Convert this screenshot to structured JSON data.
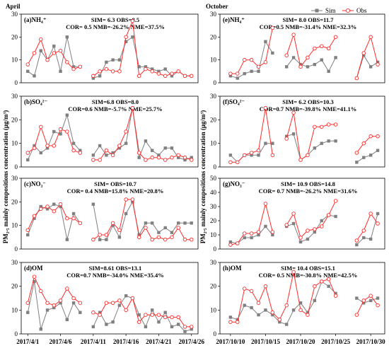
{
  "months": {
    "left": "April",
    "right": "October"
  },
  "legend": {
    "sim": "Sim",
    "obs": "Obs"
  },
  "ylabels": {
    "left": "PM",
    "right": "PM"
  },
  "ylabel_text": "PM₂.₅ mainly compositions concentration (μg/m³)",
  "xticks": {
    "left": [
      "2017/4/1",
      "2017/4/6",
      "2017/4/11",
      "2017/4/16",
      "2017/4/21",
      "2017/4/26"
    ],
    "right": [
      "2017/10/10",
      "2017/10/15",
      "2017/10/20",
      "2017/10/25",
      "2017/10/30"
    ]
  },
  "chart_data": [
    {
      "type": "line",
      "id": "a",
      "column": "left",
      "label": "(a)NH₄⁺",
      "stats1": "SIM= 6.3 OBS=8.5",
      "stats2": "COR= 0.5 NMB=-26.2% NME=37.5%",
      "ylim": [
        0,
        30
      ],
      "yticks": [
        0,
        10,
        20,
        30
      ],
      "x": [
        1,
        2,
        3,
        4,
        5,
        6,
        7,
        8,
        9,
        11,
        12,
        13,
        14,
        15,
        16,
        17,
        18,
        19,
        20,
        21,
        22,
        23,
        24,
        25,
        26
      ],
      "series": [
        {
          "name": "Sim",
          "values": [
            5,
            3,
            14,
            10,
            16,
            5,
            20,
            7,
            7,
            2,
            3,
            9,
            10,
            10,
            18,
            20,
            7,
            7,
            6,
            5,
            6,
            3,
            5,
            3,
            3
          ]
        },
        {
          "name": "Obs",
          "values": [
            8,
            13,
            19,
            10,
            13,
            14,
            9,
            6,
            7,
            3,
            5,
            6,
            5,
            5,
            20,
            27,
            3,
            6,
            5,
            4,
            3,
            4,
            5,
            3,
            3
          ]
        }
      ]
    },
    {
      "type": "line",
      "id": "b",
      "column": "left",
      "label": "(b)SO₄²⁻",
      "stats1": "SIM=6.8 OBS=8.0",
      "stats2": "COR=0.6 NMB=-5.7% NME=25.7%",
      "ylim": [
        0,
        30
      ],
      "yticks": [
        0,
        10,
        20,
        30
      ],
      "x": [
        1,
        2,
        3,
        4,
        5,
        6,
        7,
        8,
        9,
        11,
        12,
        13,
        14,
        15,
        16,
        17,
        18,
        19,
        20,
        21,
        22,
        23,
        24,
        25,
        26
      ],
      "series": [
        {
          "name": "Sim",
          "values": [
            3,
            9,
            6,
            8,
            15,
            14,
            22,
            10,
            7,
            5,
            9,
            5,
            6,
            8,
            10,
            25,
            4,
            11,
            7,
            5,
            8,
            8,
            4,
            3,
            4
          ]
        },
        {
          "name": "Obs",
          "values": [
            6,
            8,
            17,
            9,
            9,
            16,
            15,
            7,
            6,
            3,
            3,
            7,
            5,
            9,
            15,
            25,
            6,
            3,
            4,
            4,
            3,
            4,
            5,
            4,
            3
          ]
        }
      ]
    },
    {
      "type": "line",
      "id": "c",
      "column": "left",
      "label": "(c)NO₃⁻",
      "stats1": "SIM= OBS=10.7",
      "stats2": "COR= 0.4 NMB=15.8% NME=20.8%",
      "ylim": [
        0,
        30
      ],
      "yticks": [
        0,
        10,
        20,
        30
      ],
      "x": [
        1,
        2,
        3,
        4,
        5,
        6,
        7,
        8,
        9,
        11,
        12,
        13,
        14,
        15,
        16,
        17,
        18,
        19,
        20,
        21,
        22,
        23,
        24,
        25,
        26
      ],
      "series": [
        {
          "name": "Sim",
          "values": [
            6,
            13,
            18,
            17,
            19,
            18,
            4,
            15,
            11,
            19,
            4,
            4,
            10,
            5,
            15,
            20,
            6,
            11,
            11,
            7,
            9,
            7,
            11,
            11,
            11
          ]
        },
        {
          "name": "Obs",
          "values": [
            8,
            14,
            17,
            18,
            16,
            19,
            13,
            13,
            11,
            4,
            6,
            6,
            11,
            8,
            21,
            21,
            5,
            9,
            4,
            5,
            4,
            5,
            9,
            4,
            4
          ]
        }
      ]
    },
    {
      "type": "line",
      "id": "d",
      "column": "left",
      "label": "(d)OM",
      "stats1": "SIM=8.61 OBS=13.1",
      "stats2": "COR=0.7 NMB=-34.0% NME=35.4%",
      "ylim": [
        0,
        30
      ],
      "yticks": [
        0,
        10,
        20,
        30
      ],
      "x": [
        1,
        2,
        3,
        4,
        5,
        6,
        7,
        8,
        9,
        11,
        12,
        13,
        14,
        15,
        16,
        17,
        18,
        19,
        20,
        21,
        22,
        23,
        24,
        25,
        26
      ],
      "series": [
        {
          "name": "Sim",
          "values": [
            9,
            22,
            2,
            10,
            11,
            13,
            6,
            13,
            9,
            3,
            9,
            4,
            5,
            12,
            16,
            15,
            8,
            3,
            10,
            5,
            9,
            3,
            4,
            1,
            2
          ]
        },
        {
          "name": "Obs",
          "values": [
            13,
            24,
            18,
            13,
            12,
            14,
            19,
            15,
            13,
            9,
            8,
            13,
            13,
            14,
            10,
            15,
            5,
            8,
            8,
            8,
            7,
            7,
            7,
            3,
            3
          ]
        }
      ]
    },
    {
      "type": "line",
      "id": "e",
      "column": "right",
      "label": "(e)NH₄⁺",
      "stats1": "SIM= 8.0 OBS=11.7",
      "stats2": "COR=0.5 NMB=-31.4% NME=32.3%",
      "ylim": [
        0,
        30
      ],
      "yticks": [
        0,
        10,
        20,
        30
      ],
      "x": [
        10,
        11,
        12,
        13,
        14,
        15,
        16,
        18,
        19,
        20,
        21,
        22,
        23,
        24,
        25,
        28,
        29,
        30,
        31
      ],
      "series": [
        {
          "name": "Sim",
          "values": [
            3,
            2,
            4,
            5,
            5,
            18,
            13,
            7,
            11,
            8,
            7,
            8,
            10,
            5,
            11,
            2,
            12,
            7,
            9
          ]
        },
        {
          "name": "Obs",
          "values": [
            4,
            4,
            10,
            10,
            7,
            9,
            24,
            12,
            21,
            7,
            11,
            15,
            16,
            15,
            20,
            2,
            13,
            20,
            8
          ]
        }
      ]
    },
    {
      "type": "line",
      "id": "f",
      "column": "right",
      "label": "(f)SO₄²⁻",
      "stats1": "SIM= 6.2 OBS=10.3",
      "stats2": "COR=0.7 NMB=-39.8% NME=41.1%",
      "ylim": [
        0,
        30
      ],
      "yticks": [
        0,
        10,
        20,
        30
      ],
      "x": [
        10,
        11,
        12,
        13,
        14,
        15,
        16,
        18,
        19,
        20,
        21,
        22,
        23,
        24,
        25,
        28,
        29,
        30,
        31
      ],
      "series": [
        {
          "name": "Sim",
          "values": [
            5,
            2,
            5,
            5,
            5,
            10,
            10,
            13,
            14,
            3,
            5,
            8,
            10,
            11,
            11,
            2,
            4,
            5,
            7
          ]
        },
        {
          "name": "Obs",
          "values": [
            2,
            2,
            5,
            6,
            7,
            25,
            5,
            12,
            23,
            3,
            5,
            17,
            17,
            18,
            18,
            6,
            10,
            13,
            13
          ]
        }
      ]
    },
    {
      "type": "line",
      "id": "g",
      "column": "right",
      "label": "(g)NO₃⁻",
      "stats1": "SIM= 10.9 OBS=14.8",
      "stats2": "COR= 0.7 NMB=-26.2% NME=31.6%",
      "ylim": [
        0,
        50
      ],
      "yticks": [
        0,
        10,
        20,
        30,
        40,
        50
      ],
      "x": [
        10,
        11,
        12,
        13,
        14,
        15,
        16,
        18,
        19,
        20,
        21,
        22,
        23,
        24,
        25,
        28,
        29,
        30,
        31
      ],
      "series": [
        {
          "name": "Sim",
          "values": [
            5,
            4,
            8,
            8,
            10,
            16,
            10,
            16,
            18,
            5,
            7,
            12,
            20,
            24,
            23,
            3,
            8,
            7,
            25
          ]
        },
        {
          "name": "Obs",
          "values": [
            3,
            4,
            11,
            11,
            12,
            32,
            12,
            17,
            25,
            8,
            13,
            14,
            16,
            24,
            34,
            6,
            13,
            25,
            18
          ]
        }
      ]
    },
    {
      "type": "line",
      "id": "h",
      "column": "right",
      "label": "(h)OM",
      "stats1": "SIM= 10.4 OBS=15.1",
      "stats2": "COR= 0.5 NMB=-30.8% NME=42.5%",
      "ylim": [
        0,
        30
      ],
      "yticks": [
        0,
        10,
        20,
        30
      ],
      "x": [
        10,
        11,
        12,
        13,
        14,
        15,
        16,
        17,
        18,
        19,
        20,
        21,
        22,
        23,
        24,
        25,
        28,
        29,
        30,
        31
      ],
      "series": [
        {
          "name": "Sim",
          "values": [
            7,
            6,
            12,
            11,
            8,
            10,
            8,
            5,
            4,
            10,
            13,
            9,
            14,
            22,
            20,
            17,
            15,
            13,
            14,
            15
          ]
        },
        {
          "name": "Obs",
          "values": [
            5,
            5,
            19,
            18,
            13,
            20,
            9,
            6,
            12,
            26,
            10,
            8,
            20,
            22,
            23,
            16,
            8,
            14,
            16,
            12
          ]
        }
      ]
    }
  ]
}
